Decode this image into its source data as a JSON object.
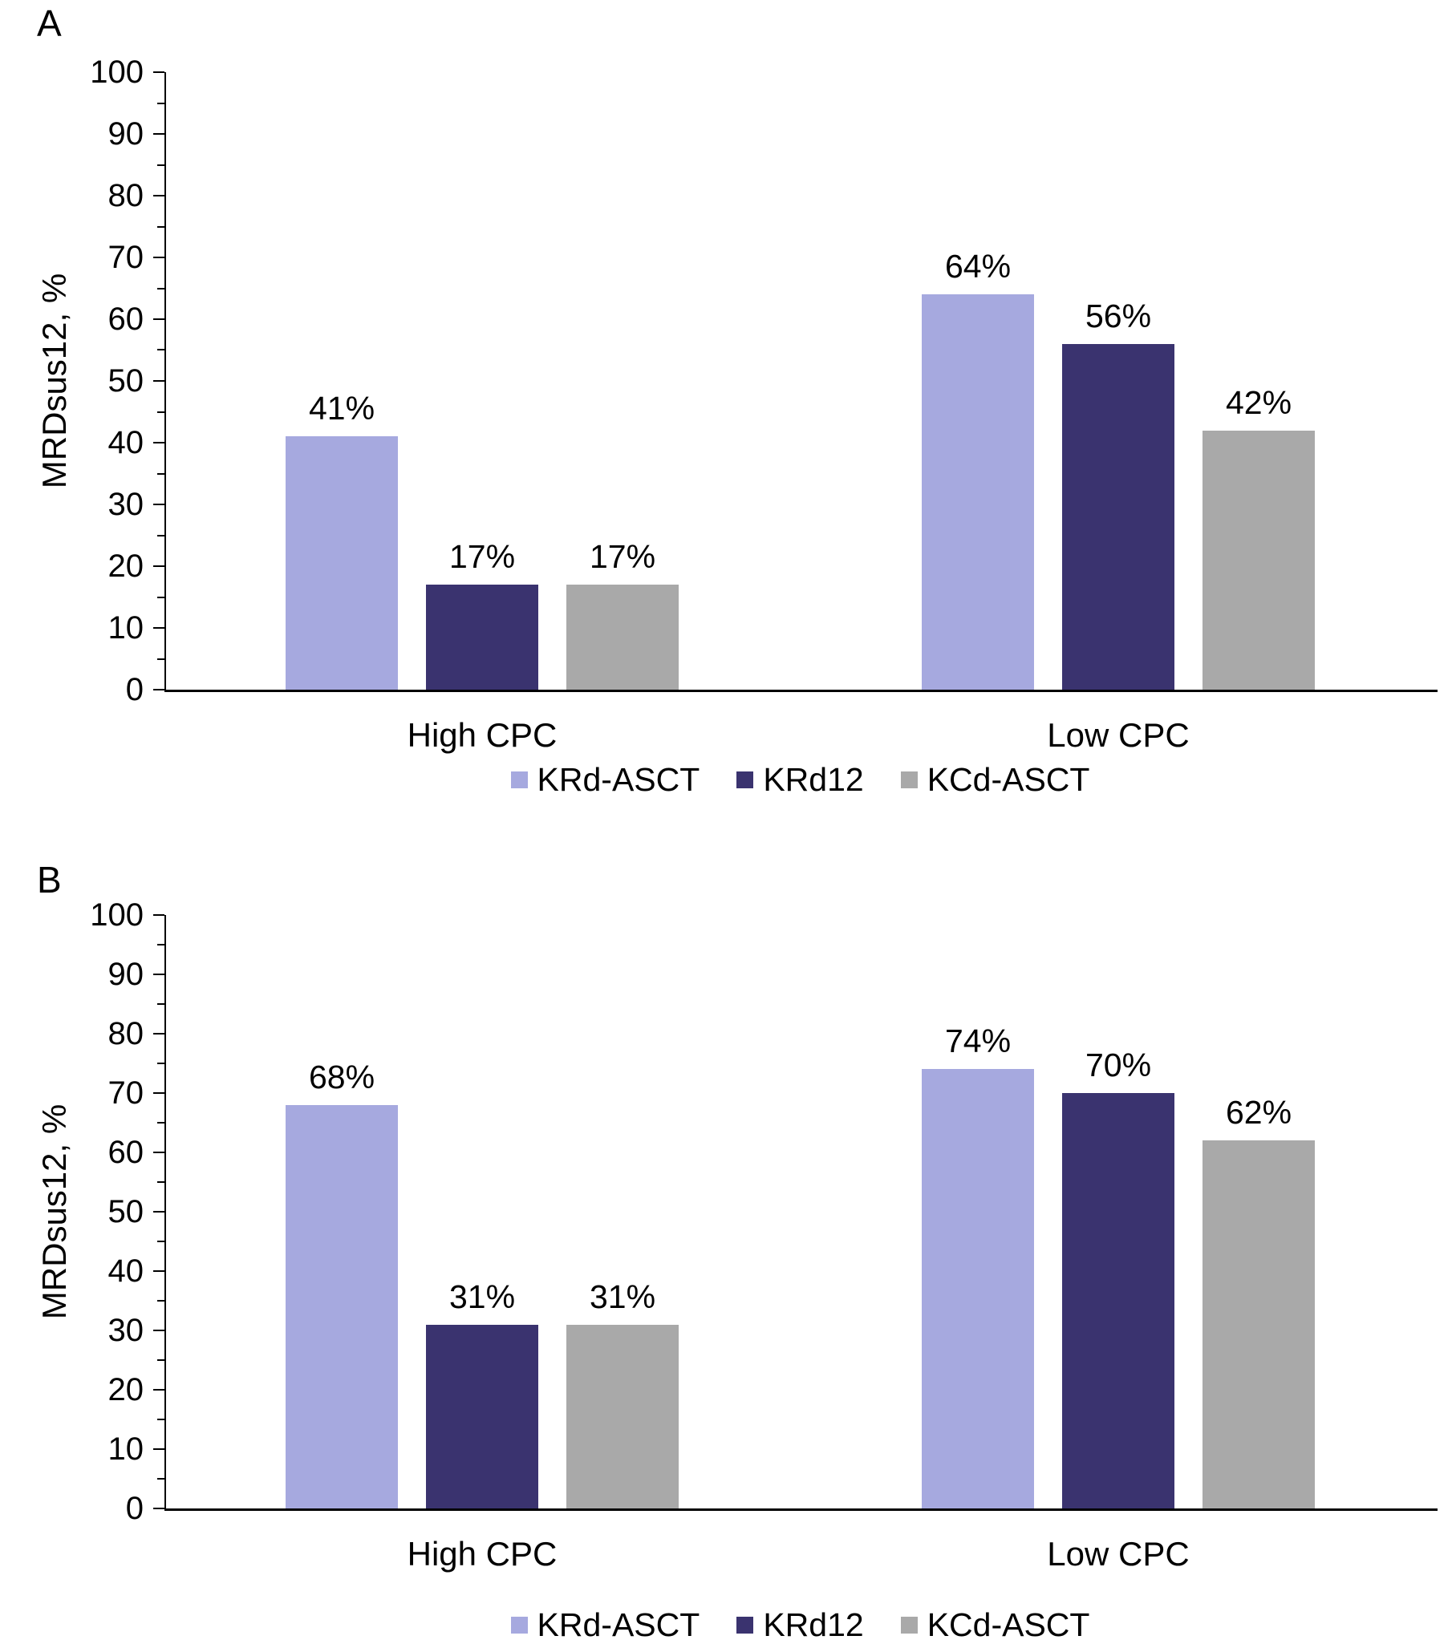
{
  "chart_data": [
    {
      "panel_label": "A",
      "type": "bar",
      "title": "",
      "categories": [
        "High CPC",
        "Low CPC"
      ],
      "series": [
        {
          "name": "KRd-ASCT",
          "color": "#A6A9DF",
          "values": [
            41,
            64
          ]
        },
        {
          "name": "KRd12",
          "color": "#3A336F",
          "values": [
            17,
            56
          ]
        },
        {
          "name": "KCd-ASCT",
          "color": "#A9A9A9",
          "values": [
            17,
            42
          ]
        }
      ],
      "ylabel": "MRDsus12, %",
      "xlabel": "",
      "ylim": [
        0,
        100
      ],
      "ytick_step": 10,
      "yminor_step": 5,
      "ytick_labels": [
        "0",
        "10",
        "20",
        "30",
        "40",
        "50",
        "60",
        "70",
        "80",
        "90",
        "100"
      ],
      "value_suffix": "%",
      "grid": false,
      "legend_position": "bottom",
      "legend": [
        "KRd-ASCT",
        "KRd12",
        "KCd-ASCT"
      ]
    },
    {
      "panel_label": "B",
      "type": "bar",
      "title": "",
      "categories": [
        "High CPC",
        "Low CPC"
      ],
      "series": [
        {
          "name": "KRd-ASCT",
          "color": "#A6A9DF",
          "values": [
            68,
            74
          ]
        },
        {
          "name": "KRd12",
          "color": "#3A336F",
          "values": [
            31,
            70
          ]
        },
        {
          "name": "KCd-ASCT",
          "color": "#A9A9A9",
          "values": [
            31,
            62
          ]
        }
      ],
      "ylabel": "MRDsus12, %",
      "xlabel": "",
      "ylim": [
        0,
        100
      ],
      "ytick_step": 10,
      "yminor_step": 5,
      "ytick_labels": [
        "0",
        "10",
        "20",
        "30",
        "40",
        "50",
        "60",
        "70",
        "80",
        "90",
        "100"
      ],
      "value_suffix": "%",
      "grid": false,
      "legend_position": "bottom",
      "legend": [
        "KRd-ASCT",
        "KRd12",
        "KCd-ASCT"
      ]
    }
  ],
  "colors": {
    "krd_asct": "#A6A9DF",
    "krd12": "#3A336F",
    "kcd_asct": "#A9A9A9",
    "axis": "#000000",
    "background": "#FFFFFF"
  }
}
